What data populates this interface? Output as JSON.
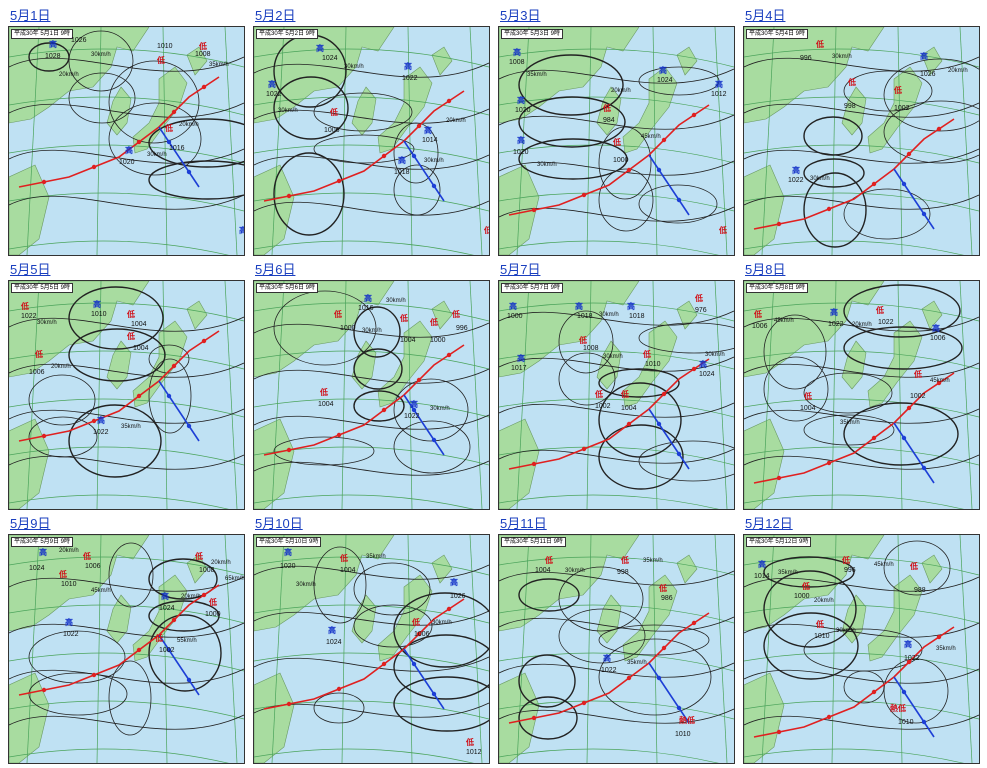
{
  "colors": {
    "sea": "#bfe1f3",
    "land": "#a8dca0",
    "high": "#1230c8",
    "low": "#d0131b",
    "front_cold": "#1d3fd6",
    "front_warm": "#e02020",
    "isobar": "#222222"
  },
  "maps": [
    {
      "date": "5月1日",
      "header": "平成30年 5月1日 9時",
      "labels": [
        {
          "t": "高",
          "k": "hi"
        },
        {
          "t": "1028",
          "k": "pr"
        },
        {
          "t": "1026",
          "k": "pr"
        },
        {
          "t": "30km/h",
          "k": "sp"
        },
        {
          "t": "20km/h",
          "k": "sp"
        },
        {
          "t": "1010",
          "k": "pr"
        },
        {
          "t": "低",
          "k": "lo"
        },
        {
          "t": "低",
          "k": "lo"
        },
        {
          "t": "1008",
          "k": "pr"
        },
        {
          "t": "35km/h",
          "k": "sp"
        },
        {
          "t": "高",
          "k": "hi"
        },
        {
          "t": "1020",
          "k": "pr"
        },
        {
          "t": "30km/h",
          "k": "sp"
        },
        {
          "t": "低",
          "k": "lo"
        },
        {
          "t": "1016",
          "k": "pr"
        },
        {
          "t": "20km/h",
          "k": "sp"
        },
        {
          "t": "高",
          "k": "hi"
        }
      ]
    },
    {
      "date": "5月2日",
      "header": "平成30年 5月2日 9時",
      "labels": [
        {
          "t": "高",
          "k": "hi"
        },
        {
          "t": "1024",
          "k": "pr"
        },
        {
          "t": "30km/h",
          "k": "sp"
        },
        {
          "t": "高",
          "k": "hi"
        },
        {
          "t": "1022",
          "k": "pr"
        },
        {
          "t": "高",
          "k": "hi"
        },
        {
          "t": "1022",
          "k": "pr"
        },
        {
          "t": "30km/h",
          "k": "sp"
        },
        {
          "t": "低",
          "k": "lo"
        },
        {
          "t": "1006",
          "k": "pr"
        },
        {
          "t": "高",
          "k": "hi"
        },
        {
          "t": "1018",
          "k": "pr"
        },
        {
          "t": "30km/h",
          "k": "sp"
        },
        {
          "t": "高",
          "k": "hi"
        },
        {
          "t": "1014",
          "k": "pr"
        },
        {
          "t": "20km/h",
          "k": "sp"
        },
        {
          "t": "低",
          "k": "lo"
        }
      ]
    },
    {
      "date": "5月3日",
      "header": "平成30年 5月3日 9時",
      "labels": [
        {
          "t": "高",
          "k": "hi"
        },
        {
          "t": "1008",
          "k": "pr"
        },
        {
          "t": "35km/h",
          "k": "sp"
        },
        {
          "t": "高",
          "k": "hi"
        },
        {
          "t": "1020",
          "k": "pr"
        },
        {
          "t": "低",
          "k": "lo"
        },
        {
          "t": "984",
          "k": "pr"
        },
        {
          "t": "20km/h",
          "k": "sp"
        },
        {
          "t": "高",
          "k": "hi"
        },
        {
          "t": "1024",
          "k": "pr"
        },
        {
          "t": "高",
          "k": "hi"
        },
        {
          "t": "1012",
          "k": "pr"
        },
        {
          "t": "高",
          "k": "hi"
        },
        {
          "t": "1020",
          "k": "pr"
        },
        {
          "t": "30km/h",
          "k": "sp"
        },
        {
          "t": "低",
          "k": "lo"
        },
        {
          "t": "1000",
          "k": "pr"
        },
        {
          "t": "45km/h",
          "k": "sp"
        },
        {
          "t": "低",
          "k": "lo"
        }
      ]
    },
    {
      "date": "5月4日",
      "header": "平成30年 5月4日 9時",
      "labels": [
        {
          "t": "低",
          "k": "lo"
        },
        {
          "t": "996",
          "k": "pr"
        },
        {
          "t": "30km/h",
          "k": "sp"
        },
        {
          "t": "高",
          "k": "hi"
        },
        {
          "t": "1026",
          "k": "pr"
        },
        {
          "t": "20km/h",
          "k": "sp"
        },
        {
          "t": "低",
          "k": "lo"
        },
        {
          "t": "998",
          "k": "pr"
        },
        {
          "t": "低",
          "k": "lo"
        },
        {
          "t": "1002",
          "k": "pr"
        },
        {
          "t": "高",
          "k": "hi"
        },
        {
          "t": "1022",
          "k": "pr"
        },
        {
          "t": "30km/h",
          "k": "sp"
        }
      ]
    },
    {
      "date": "5月5日",
      "header": "平成30年 5月5日 9時",
      "labels": [
        {
          "t": "低",
          "k": "lo"
        },
        {
          "t": "1022",
          "k": "pr"
        },
        {
          "t": "30km/h",
          "k": "sp"
        },
        {
          "t": "高",
          "k": "hi"
        },
        {
          "t": "1010",
          "k": "pr"
        },
        {
          "t": "低",
          "k": "lo"
        },
        {
          "t": "1004",
          "k": "pr"
        },
        {
          "t": "低",
          "k": "lo"
        },
        {
          "t": "1004",
          "k": "pr"
        },
        {
          "t": "低",
          "k": "lo"
        },
        {
          "t": "1006",
          "k": "pr"
        },
        {
          "t": "20km/h",
          "k": "sp"
        },
        {
          "t": "高",
          "k": "hi"
        },
        {
          "t": "1022",
          "k": "pr"
        },
        {
          "t": "35km/h",
          "k": "sp"
        }
      ]
    },
    {
      "date": "5月6日",
      "header": "平成30年 5月6日 9時",
      "labels": [
        {
          "t": "高",
          "k": "hi"
        },
        {
          "t": "1016",
          "k": "pr"
        },
        {
          "t": "30km/h",
          "k": "sp"
        },
        {
          "t": "低",
          "k": "lo"
        },
        {
          "t": "1000",
          "k": "pr"
        },
        {
          "t": "30km/h",
          "k": "sp"
        },
        {
          "t": "低",
          "k": "lo"
        },
        {
          "t": "1004",
          "k": "pr"
        },
        {
          "t": "低",
          "k": "lo"
        },
        {
          "t": "1000",
          "k": "pr"
        },
        {
          "t": "低",
          "k": "lo"
        },
        {
          "t": "996",
          "k": "pr"
        },
        {
          "t": "低",
          "k": "lo"
        },
        {
          "t": "1004",
          "k": "pr"
        },
        {
          "t": "高",
          "k": "hi"
        },
        {
          "t": "1022",
          "k": "pr"
        },
        {
          "t": "30km/h",
          "k": "sp"
        }
      ]
    },
    {
      "date": "5月7日",
      "header": "平成30年 5月7日 9時",
      "labels": [
        {
          "t": "高",
          "k": "hi"
        },
        {
          "t": "1000",
          "k": "pr"
        },
        {
          "t": "高",
          "k": "hi"
        },
        {
          "t": "1018",
          "k": "pr"
        },
        {
          "t": "30km/h",
          "k": "sp"
        },
        {
          "t": "高",
          "k": "hi"
        },
        {
          "t": "1018",
          "k": "pr"
        },
        {
          "t": "低",
          "k": "lo"
        },
        {
          "t": "976",
          "k": "pr"
        },
        {
          "t": "低",
          "k": "lo"
        },
        {
          "t": "1008",
          "k": "pr"
        },
        {
          "t": "30km/h",
          "k": "sp"
        },
        {
          "t": "低",
          "k": "lo"
        },
        {
          "t": "1010",
          "k": "pr"
        },
        {
          "t": "高",
          "k": "hi"
        },
        {
          "t": "1017",
          "k": "pr"
        },
        {
          "t": "低",
          "k": "lo"
        },
        {
          "t": "1002",
          "k": "pr"
        },
        {
          "t": "低",
          "k": "lo"
        },
        {
          "t": "1004",
          "k": "pr"
        },
        {
          "t": "高",
          "k": "hi"
        },
        {
          "t": "1024",
          "k": "pr"
        },
        {
          "t": "30km/h",
          "k": "sp"
        }
      ]
    },
    {
      "date": "5月8日",
      "header": "平成30年 5月8日 9時",
      "labels": [
        {
          "t": "低",
          "k": "lo"
        },
        {
          "t": "1006",
          "k": "pr"
        },
        {
          "t": "45km/h",
          "k": "sp"
        },
        {
          "t": "高",
          "k": "hi"
        },
        {
          "t": "1022",
          "k": "pr"
        },
        {
          "t": "20km/h",
          "k": "sp"
        },
        {
          "t": "低",
          "k": "lo"
        },
        {
          "t": "1022",
          "k": "pr"
        },
        {
          "t": "高",
          "k": "hi"
        },
        {
          "t": "1006",
          "k": "pr"
        },
        {
          "t": "低",
          "k": "lo"
        },
        {
          "t": "1004",
          "k": "pr"
        },
        {
          "t": "35km/h",
          "k": "sp"
        },
        {
          "t": "低",
          "k": "lo"
        },
        {
          "t": "1002",
          "k": "pr"
        },
        {
          "t": "45km/h",
          "k": "sp"
        }
      ]
    },
    {
      "date": "5月9日",
      "header": "平成30年 5月9日 9時",
      "labels": [
        {
          "t": "高",
          "k": "hi"
        },
        {
          "t": "1024",
          "k": "pr"
        },
        {
          "t": "20km/h",
          "k": "sp"
        },
        {
          "t": "低",
          "k": "lo"
        },
        {
          "t": "1006",
          "k": "pr"
        },
        {
          "t": "低",
          "k": "lo"
        },
        {
          "t": "1010",
          "k": "pr"
        },
        {
          "t": "45km/h",
          "k": "sp"
        },
        {
          "t": "低",
          "k": "lo"
        },
        {
          "t": "1008",
          "k": "pr"
        },
        {
          "t": "20km/h",
          "k": "sp"
        },
        {
          "t": "高",
          "k": "hi"
        },
        {
          "t": "1024",
          "k": "pr"
        },
        {
          "t": "20km/h",
          "k": "sp"
        },
        {
          "t": "低",
          "k": "lo"
        },
        {
          "t": "1000",
          "k": "pr"
        },
        {
          "t": "高",
          "k": "hi"
        },
        {
          "t": "1022",
          "k": "pr"
        },
        {
          "t": "低",
          "k": "lo"
        },
        {
          "t": "1002",
          "k": "pr"
        },
        {
          "t": "55km/h",
          "k": "sp"
        },
        {
          "t": "65km/h",
          "k": "sp"
        }
      ]
    },
    {
      "date": "5月10日",
      "header": "平成30年 5月10日 9時",
      "labels": [
        {
          "t": "高",
          "k": "hi"
        },
        {
          "t": "1020",
          "k": "pr"
        },
        {
          "t": "30km/h",
          "k": "sp"
        },
        {
          "t": "低",
          "k": "lo"
        },
        {
          "t": "1004",
          "k": "pr"
        },
        {
          "t": "35km/h",
          "k": "sp"
        },
        {
          "t": "高",
          "k": "hi"
        },
        {
          "t": "1026",
          "k": "pr"
        },
        {
          "t": "高",
          "k": "hi"
        },
        {
          "t": "1024",
          "k": "pr"
        },
        {
          "t": "低",
          "k": "lo"
        },
        {
          "t": "1006",
          "k": "pr"
        },
        {
          "t": "30km/h",
          "k": "sp"
        },
        {
          "t": "低",
          "k": "lo"
        },
        {
          "t": "1012",
          "k": "pr"
        }
      ]
    },
    {
      "date": "5月11日",
      "header": "平成30年 5月11日 9時",
      "labels": [
        {
          "t": "低",
          "k": "lo"
        },
        {
          "t": "1004",
          "k": "pr"
        },
        {
          "t": "30km/h",
          "k": "sp"
        },
        {
          "t": "低",
          "k": "lo"
        },
        {
          "t": "998",
          "k": "pr"
        },
        {
          "t": "35km/h",
          "k": "sp"
        },
        {
          "t": "低",
          "k": "lo"
        },
        {
          "t": "986",
          "k": "pr"
        },
        {
          "t": "高",
          "k": "hi"
        },
        {
          "t": "1022",
          "k": "pr"
        },
        {
          "t": "35km/h",
          "k": "sp"
        },
        {
          "t": "熱低",
          "k": "lo"
        },
        {
          "t": "1010",
          "k": "pr"
        }
      ]
    },
    {
      "date": "5月12日",
      "header": "平成30年 5月12日 9時",
      "labels": [
        {
          "t": "高",
          "k": "hi"
        },
        {
          "t": "1014",
          "k": "pr"
        },
        {
          "t": "35km/h",
          "k": "sp"
        },
        {
          "t": "低",
          "k": "lo"
        },
        {
          "t": "996",
          "k": "pr"
        },
        {
          "t": "45km/h",
          "k": "sp"
        },
        {
          "t": "低",
          "k": "lo"
        },
        {
          "t": "988",
          "k": "pr"
        },
        {
          "t": "低",
          "k": "lo"
        },
        {
          "t": "1000",
          "k": "pr"
        },
        {
          "t": "20km/h",
          "k": "sp"
        },
        {
          "t": "低",
          "k": "lo"
        },
        {
          "t": "1010",
          "k": "pr"
        },
        {
          "t": "30km/h",
          "k": "sp"
        },
        {
          "t": "高",
          "k": "hi"
        },
        {
          "t": "1022",
          "k": "pr"
        },
        {
          "t": "35km/h",
          "k": "sp"
        },
        {
          "t": "熱低",
          "k": "lo"
        },
        {
          "t": "1010",
          "k": "pr"
        }
      ]
    }
  ]
}
